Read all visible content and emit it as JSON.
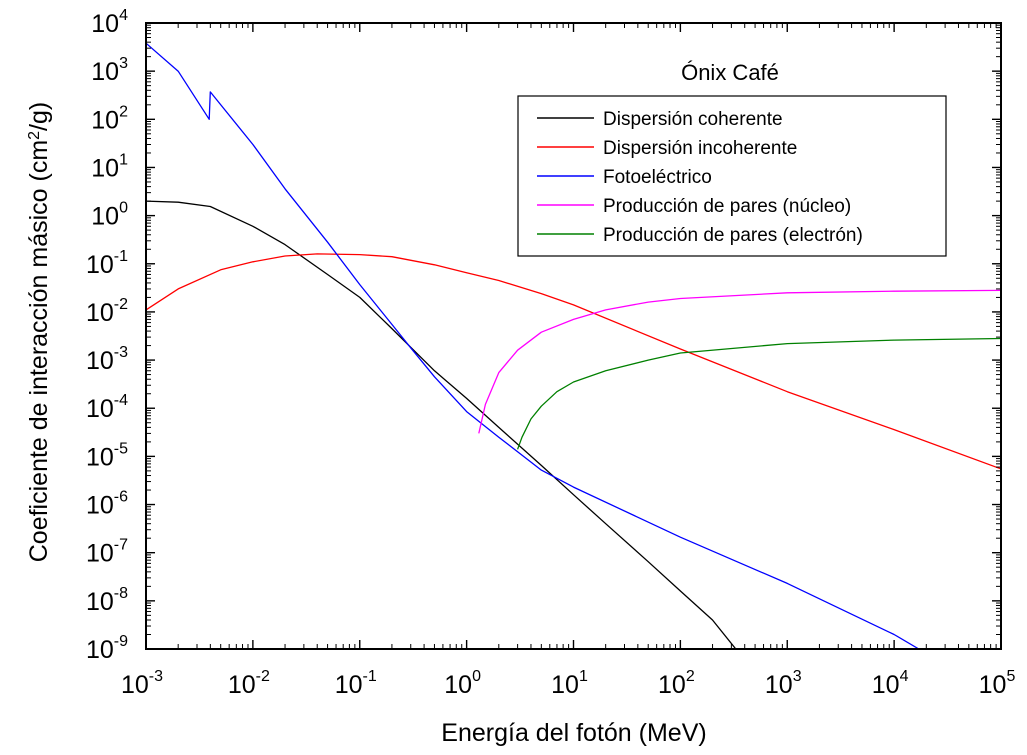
{
  "chart_data": {
    "type": "line",
    "title": "Ónix Café",
    "xlabel": "Energía del fotón (MeV)",
    "ylabel": {
      "prefix": "Coeficiente de interacción másico (cm",
      "sup": "2",
      "suffix": "/g)"
    },
    "xscale": "log",
    "yscale": "log",
    "xlim": [
      0.001,
      100000
    ],
    "ylim": [
      1e-09,
      10000
    ],
    "x_ticks": [
      {
        "base": "10",
        "exp": "-3"
      },
      {
        "base": "10",
        "exp": "-2"
      },
      {
        "base": "10",
        "exp": "-1"
      },
      {
        "base": "10",
        "exp": "0"
      },
      {
        "base": "10",
        "exp": "1"
      },
      {
        "base": "10",
        "exp": "2"
      },
      {
        "base": "10",
        "exp": "3"
      },
      {
        "base": "10",
        "exp": "4"
      },
      {
        "base": "10",
        "exp": "5"
      }
    ],
    "y_ticks": [
      {
        "base": "10",
        "exp": "-9"
      },
      {
        "base": "10",
        "exp": "-8"
      },
      {
        "base": "10",
        "exp": "-7"
      },
      {
        "base": "10",
        "exp": "-6"
      },
      {
        "base": "10",
        "exp": "-5"
      },
      {
        "base": "10",
        "exp": "-4"
      },
      {
        "base": "10",
        "exp": "-3"
      },
      {
        "base": "10",
        "exp": "-2"
      },
      {
        "base": "10",
        "exp": "-1"
      },
      {
        "base": "10",
        "exp": "0"
      },
      {
        "base": "10",
        "exp": "1"
      },
      {
        "base": "10",
        "exp": "2"
      },
      {
        "base": "10",
        "exp": "3"
      },
      {
        "base": "10",
        "exp": "4"
      }
    ],
    "grid": false,
    "legend_position": "top-right",
    "series": [
      {
        "name": "Dispersión coherente",
        "color": "#000000",
        "x": [
          0.001,
          0.002,
          0.004,
          0.01,
          0.02,
          0.05,
          0.1,
          0.2,
          0.5,
          1,
          2,
          5,
          10,
          20,
          50,
          100,
          200,
          330
        ],
        "y": [
          2.0,
          1.9,
          1.55,
          0.6,
          0.25,
          0.06,
          0.02,
          0.0045,
          0.0006,
          0.00016,
          4e-05,
          6.5e-06,
          1.6e-06,
          4e-07,
          6.5e-08,
          1.6e-08,
          4e-09,
          1e-09
        ]
      },
      {
        "name": "Dispersión incoherente",
        "color": "#ff0000",
        "x": [
          0.001,
          0.002,
          0.005,
          0.01,
          0.02,
          0.04,
          0.1,
          0.2,
          0.5,
          1,
          2,
          5,
          10,
          100,
          1000,
          10000,
          100000
        ],
        "y": [
          0.011,
          0.03,
          0.075,
          0.11,
          0.145,
          0.16,
          0.155,
          0.14,
          0.095,
          0.065,
          0.045,
          0.024,
          0.014,
          0.0017,
          0.00022,
          3.6e-05,
          5.5e-06
        ]
      },
      {
        "name": "Fotoeléctrico",
        "color": "#0000ff",
        "x": [
          0.001,
          0.002,
          0.0039,
          0.004,
          0.01,
          0.02,
          0.05,
          0.1,
          0.2,
          0.3,
          0.5,
          1,
          2,
          5,
          10,
          100,
          1000,
          10000,
          17000
        ],
        "y": [
          3800,
          1000,
          100,
          370,
          30,
          3.6,
          0.28,
          0.037,
          0.0055,
          0.0018,
          0.00045,
          8.5e-05,
          2.5e-05,
          5.2e-06,
          2.3e-06,
          2.1e-07,
          2.3e-08,
          2e-09,
          1e-09
        ]
      },
      {
        "name": "Producción de pares (núcleo)",
        "color": "#ff00ff",
        "x": [
          1.3,
          1.5,
          2,
          3,
          5,
          10,
          20,
          50,
          100,
          1000,
          10000,
          100000
        ],
        "y": [
          3e-05,
          0.00012,
          0.00055,
          0.0016,
          0.0038,
          0.007,
          0.011,
          0.016,
          0.019,
          0.025,
          0.027,
          0.028
        ]
      },
      {
        "name": "Producción de pares (electrón)",
        "color": "#008000",
        "x": [
          3.0,
          3.3,
          4,
          5,
          7,
          10,
          20,
          50,
          100,
          1000,
          10000,
          100000
        ],
        "y": [
          1.4e-05,
          2.5e-05,
          6e-05,
          0.00011,
          0.00022,
          0.00035,
          0.0006,
          0.001,
          0.0014,
          0.0022,
          0.0026,
          0.0028
        ]
      }
    ]
  }
}
